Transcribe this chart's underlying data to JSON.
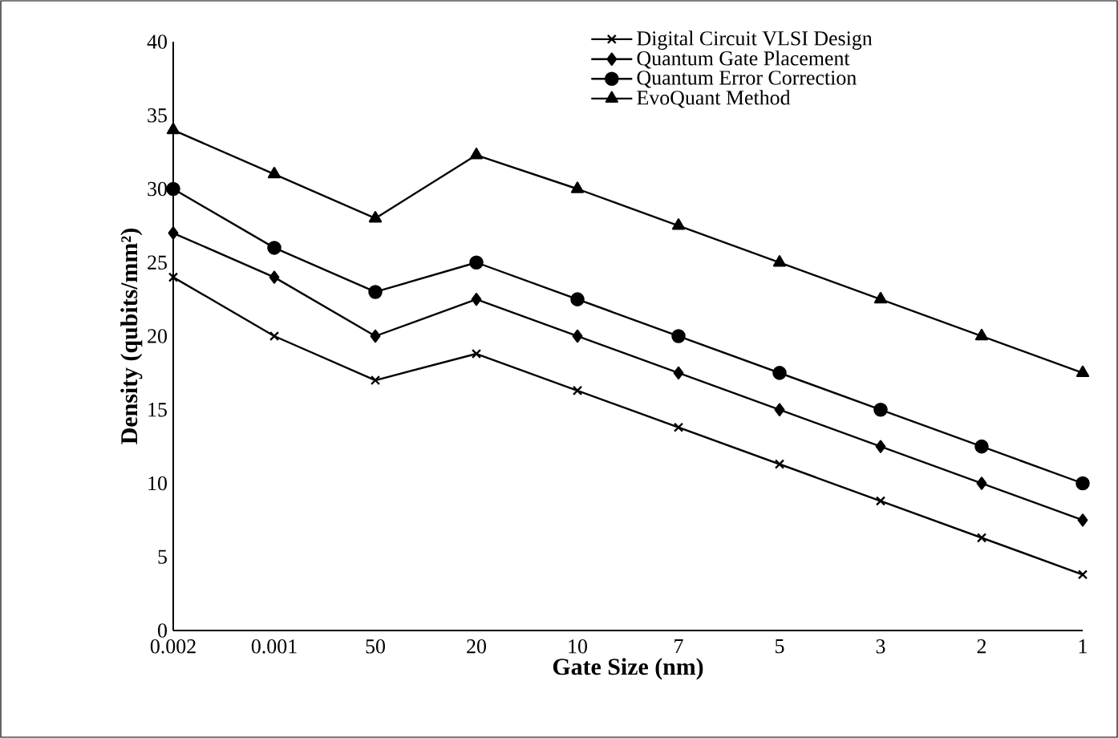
{
  "chart_data": {
    "type": "line",
    "xlabel": "Gate Size (nm)",
    "ylabel": "Density (qubits/mm²)",
    "categories": [
      "0.002",
      "0.001",
      "50",
      "20",
      "10",
      "7",
      "5",
      "3",
      "2",
      "1"
    ],
    "ylim": [
      0,
      40
    ],
    "yticks": [
      0,
      5,
      10,
      15,
      20,
      25,
      30,
      35,
      40
    ],
    "grid": false,
    "legend": "top right",
    "line_style": "solid",
    "series": [
      {
        "name": "Digital Circuit VLSI Design",
        "color": "#000000",
        "marker": "cross",
        "values": [
          24,
          20,
          17,
          18.8,
          16.3,
          13.8,
          11.3,
          8.8,
          6.3,
          3.8
        ]
      },
      {
        "name": "Quantum Gate Placement",
        "color": "#000000",
        "marker": "diamond",
        "values": [
          27,
          24,
          20,
          22.5,
          20,
          17.5,
          15,
          12.5,
          10,
          7.5
        ]
      },
      {
        "name": "Quantum Error Correction",
        "color": "#000000",
        "marker": "circle",
        "values": [
          30,
          26,
          23,
          25,
          22.5,
          20,
          17.5,
          15,
          12.5,
          10
        ]
      },
      {
        "name": "EvoQuant Method",
        "color": "#000000",
        "marker": "triangle",
        "values": [
          34,
          31,
          28,
          32.3,
          30,
          27.5,
          25,
          22.5,
          20,
          17.5
        ]
      }
    ]
  }
}
